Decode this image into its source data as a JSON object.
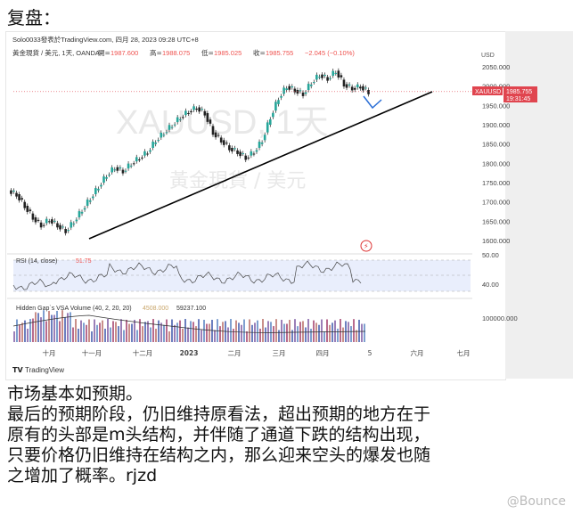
{
  "title": "复盘：",
  "header": {
    "source": "Solo0033發表於TradingView.com, 四月 28, 2023 09:28 UTC+8",
    "symbol_line": "黃金現貨 / 美元, 1天, OANDA",
    "ohlc": [
      {
        "k": "開",
        "v": "1987.600"
      },
      {
        "k": "高",
        "v": "1988.075"
      },
      {
        "k": "低",
        "v": "1985.025"
      },
      {
        "k": "收",
        "v": "1985.755"
      }
    ],
    "change": "−2.045 (−0.10%)"
  },
  "watermark": {
    "symbol": "XAUUSD, 1天",
    "name": "黃金現貨 / 美元"
  },
  "price_tag": {
    "symbol": "XAUUSD",
    "price": "1985.755",
    "time": "19:31:45"
  },
  "rsi": {
    "label": "RSI (14, close)",
    "value": "51.75",
    "ticks": [
      "50.00",
      "40.00"
    ]
  },
  "volume": {
    "label": "Hidden Gap`s VSA Volume (40, 2, 20, 20)",
    "v1": "4508.000",
    "v2": "59237.100",
    "tick": "100000.000"
  },
  "branding": "TradingView",
  "colors": {
    "up": "#26a69a",
    "down": "#ef5350",
    "candle": "#222222",
    "price_tag": "#e0454f",
    "trend": "#000000",
    "arrow": "#2b6fd6",
    "rsi": "#7e57c2"
  },
  "chart_data": {
    "type": "candlestick",
    "currency_label": "USD",
    "y_ticks": [
      2050,
      2000,
      1950,
      1900,
      1850,
      1800,
      1750,
      1700,
      1650,
      1600
    ],
    "ylim": [
      1580,
      2080
    ],
    "x_labels": [
      "十月",
      "十一月",
      "十二月",
      "2023",
      "二月",
      "三月",
      "四月",
      "5",
      "六月",
      "七月"
    ],
    "close": [
      1720,
      1690,
      1660,
      1640,
      1655,
      1640,
      1625,
      1650,
      1680,
      1710,
      1740,
      1770,
      1790,
      1780,
      1800,
      1815,
      1830,
      1860,
      1880,
      1900,
      1920,
      1935,
      1945,
      1930,
      1880,
      1860,
      1840,
      1830,
      1815,
      1830,
      1860,
      1920,
      1970,
      2000,
      1990,
      1980,
      2010,
      2030,
      2020,
      2040,
      2005,
      1995,
      2000,
      1985
    ],
    "trendline": [
      [
        1620,
        "十一月"
      ],
      [
        1990,
        "5"
      ]
    ]
  },
  "text": {
    "lines": [
      "市场基本如预期。",
      "最后的预期阶段，仍旧维持原看法，超出预期的地方在于",
      "原有的头部是m头结构，并伴随了通道下跌的结构出现，",
      "只要价格仍旧维持在结构之内，那么迎来空头的爆发也随",
      "之增加了概率。rjzd"
    ]
  },
  "footer_watermark": "@Bounce"
}
